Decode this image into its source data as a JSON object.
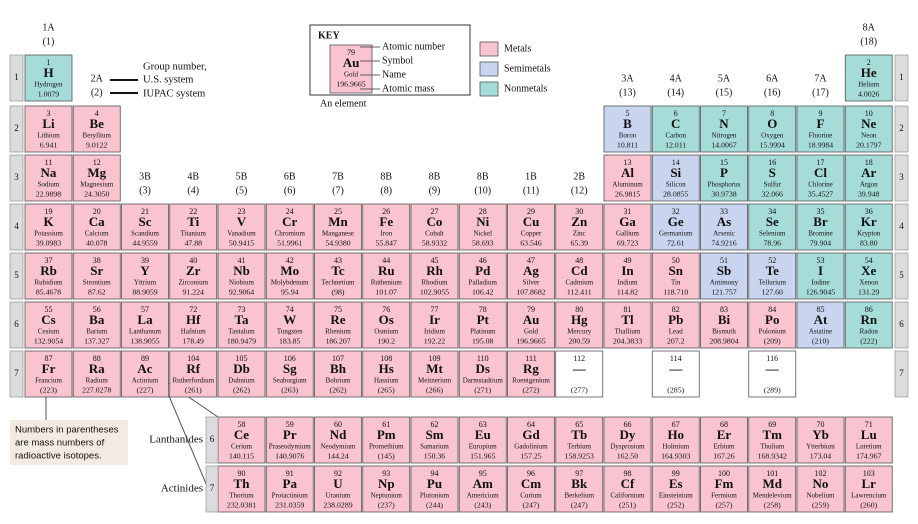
{
  "groups": [
    {
      "us": "1A",
      "iupac": "(1)"
    },
    {
      "us": "2A",
      "iupac": "(2)"
    },
    {
      "us": "3B",
      "iupac": "(3)"
    },
    {
      "us": "4B",
      "iupac": "(4)"
    },
    {
      "us": "5B",
      "iupac": "(5)"
    },
    {
      "us": "6B",
      "iupac": "(6)"
    },
    {
      "us": "7B",
      "iupac": "(7)"
    },
    {
      "us": "8B",
      "iupac": "(8)"
    },
    {
      "us": "8B",
      "iupac": "(9)"
    },
    {
      "us": "8B",
      "iupac": "(10)"
    },
    {
      "us": "1B",
      "iupac": "(11)"
    },
    {
      "us": "2B",
      "iupac": "(12)"
    },
    {
      "us": "3A",
      "iupac": "(13)"
    },
    {
      "us": "4A",
      "iupac": "(14)"
    },
    {
      "us": "5A",
      "iupac": "(15)"
    },
    {
      "us": "6A",
      "iupac": "(16)"
    },
    {
      "us": "7A",
      "iupac": "(17)"
    },
    {
      "us": "8A",
      "iupac": "(18)"
    }
  ],
  "periods": [
    "1",
    "2",
    "3",
    "4",
    "5",
    "6",
    "7"
  ],
  "group_note": [
    "Group number,",
    "U.S. system",
    "IUPAC system"
  ],
  "key": {
    "title": "KEY",
    "example": {
      "number": "79",
      "symbol": "Au",
      "name": "Gold",
      "mass": "196.9665",
      "color": "#f9c3cf"
    },
    "labels": [
      "Atomic number",
      "Symbol",
      "Name",
      "Atomic mass"
    ],
    "caption": "An element",
    "legend": [
      {
        "label": "Metals",
        "color": "#f9c3cf"
      },
      {
        "label": "Semimetals",
        "color": "#c9d4ee"
      },
      {
        "label": "Nonmetals",
        "color": "#a6dcd8"
      }
    ]
  },
  "note": [
    "Numbers in parentheses",
    "are mass numbers of",
    "radioactive isotopes."
  ],
  "series": [
    {
      "label": "Lanthanides",
      "period": "6"
    },
    {
      "label": "Actinides",
      "period": "7"
    }
  ],
  "elements": [
    {
      "number": "1",
      "symbol": "H",
      "name": "Hydrogen",
      "mass": "1.0079",
      "color": "#a6dcd8"
    },
    {
      "number": "2",
      "symbol": "He",
      "name": "Helium",
      "mass": "4.0026",
      "color": "#a6dcd8"
    },
    {
      "number": "3",
      "symbol": "Li",
      "name": "Lithium",
      "mass": "6.941",
      "color": "#f9c3cf"
    },
    {
      "number": "4",
      "symbol": "Be",
      "name": "Beryllium",
      "mass": "9.0122",
      "color": "#f9c3cf"
    },
    {
      "number": "5",
      "symbol": "B",
      "name": "Boron",
      "mass": "10.811",
      "color": "#c9d4ee"
    },
    {
      "number": "6",
      "symbol": "C",
      "name": "Carbon",
      "mass": "12.011",
      "color": "#a6dcd8"
    },
    {
      "number": "7",
      "symbol": "N",
      "name": "Nitrogen",
      "mass": "14.0067",
      "color": "#a6dcd8"
    },
    {
      "number": "8",
      "symbol": "O",
      "name": "Oxygen",
      "mass": "15.9994",
      "color": "#a6dcd8"
    },
    {
      "number": "9",
      "symbol": "F",
      "name": "Fluorine",
      "mass": "18.9984",
      "color": "#a6dcd8"
    },
    {
      "number": "10",
      "symbol": "Ne",
      "name": "Neon",
      "mass": "20.1797",
      "color": "#a6dcd8"
    },
    {
      "number": "11",
      "symbol": "Na",
      "name": "Sodium",
      "mass": "22.9898",
      "color": "#f9c3cf"
    },
    {
      "number": "12",
      "symbol": "Mg",
      "name": "Magnesium",
      "mass": "24.3050",
      "color": "#f9c3cf"
    },
    {
      "number": "13",
      "symbol": "Al",
      "name": "Aluminum",
      "mass": "26.9815",
      "color": "#f9c3cf"
    },
    {
      "number": "14",
      "symbol": "Si",
      "name": "Silicon",
      "mass": "28.0855",
      "color": "#c9d4ee"
    },
    {
      "number": "15",
      "symbol": "P",
      "name": "Phosphorus",
      "mass": "30.9738",
      "color": "#a6dcd8"
    },
    {
      "number": "16",
      "symbol": "S",
      "name": "Sulfur",
      "mass": "32.066",
      "color": "#a6dcd8"
    },
    {
      "number": "17",
      "symbol": "Cl",
      "name": "Chlorine",
      "mass": "35.4527",
      "color": "#a6dcd8"
    },
    {
      "number": "18",
      "symbol": "Ar",
      "name": "Argon",
      "mass": "39.948",
      "color": "#a6dcd8"
    },
    {
      "number": "19",
      "symbol": "K",
      "name": "Potassium",
      "mass": "39.0983",
      "color": "#f9c3cf"
    },
    {
      "number": "20",
      "symbol": "Ca",
      "name": "Calcium",
      "mass": "40.078",
      "color": "#f9c3cf"
    },
    {
      "number": "21",
      "symbol": "Sc",
      "name": "Scandium",
      "mass": "44.9559",
      "color": "#f9c3cf"
    },
    {
      "number": "22",
      "symbol": "Ti",
      "name": "Titanium",
      "mass": "47.88",
      "color": "#f9c3cf"
    },
    {
      "number": "23",
      "symbol": "V",
      "name": "Vanadium",
      "mass": "50.9415",
      "color": "#f9c3cf"
    },
    {
      "number": "24",
      "symbol": "Cr",
      "name": "Chromium",
      "mass": "51.9961",
      "color": "#f9c3cf"
    },
    {
      "number": "25",
      "symbol": "Mn",
      "name": "Manganese",
      "mass": "54.9380",
      "color": "#f9c3cf"
    },
    {
      "number": "26",
      "symbol": "Fe",
      "name": "Iron",
      "mass": "55.847",
      "color": "#f9c3cf"
    },
    {
      "number": "27",
      "symbol": "Co",
      "name": "Cobalt",
      "mass": "58.9332",
      "color": "#f9c3cf"
    },
    {
      "number": "28",
      "symbol": "Ni",
      "name": "Nickel",
      "mass": "58.693",
      "color": "#f9c3cf"
    },
    {
      "number": "29",
      "symbol": "Cu",
      "name": "Copper",
      "mass": "63.546",
      "color": "#f9c3cf"
    },
    {
      "number": "30",
      "symbol": "Zn",
      "name": "Zinc",
      "mass": "65.39",
      "color": "#f9c3cf"
    },
    {
      "number": "31",
      "symbol": "Ga",
      "name": "Gallium",
      "mass": "69.723",
      "color": "#f9c3cf"
    },
    {
      "number": "32",
      "symbol": "Ge",
      "name": "Germanium",
      "mass": "72.61",
      "color": "#c9d4ee"
    },
    {
      "number": "33",
      "symbol": "As",
      "name": "Arsenic",
      "mass": "74.9216",
      "color": "#c9d4ee"
    },
    {
      "number": "34",
      "symbol": "Se",
      "name": "Selenium",
      "mass": "78.96",
      "color": "#a6dcd8"
    },
    {
      "number": "35",
      "symbol": "Br",
      "name": "Bromine",
      "mass": "79.904",
      "color": "#a6dcd8"
    },
    {
      "number": "36",
      "symbol": "Kr",
      "name": "Krypton",
      "mass": "83.80",
      "color": "#a6dcd8"
    },
    {
      "number": "37",
      "symbol": "Rb",
      "name": "Rubidium",
      "mass": "85.4678",
      "color": "#f9c3cf"
    },
    {
      "number": "38",
      "symbol": "Sr",
      "name": "Strontium",
      "mass": "87.62",
      "color": "#f9c3cf"
    },
    {
      "number": "39",
      "symbol": "Y",
      "name": "Yttrium",
      "mass": "88.9059",
      "color": "#f9c3cf"
    },
    {
      "number": "40",
      "symbol": "Zr",
      "name": "Zirconium",
      "mass": "91.224",
      "color": "#f9c3cf"
    },
    {
      "number": "41",
      "symbol": "Nb",
      "name": "Niobium",
      "mass": "92.9064",
      "color": "#f9c3cf"
    },
    {
      "number": "42",
      "symbol": "Mo",
      "name": "Molybdenum",
      "mass": "95.94",
      "color": "#f9c3cf"
    },
    {
      "number": "43",
      "symbol": "Tc",
      "name": "Technetium",
      "mass": "(98)",
      "color": "#f9c3cf"
    },
    {
      "number": "44",
      "symbol": "Ru",
      "name": "Ruthenium",
      "mass": "101.07",
      "color": "#f9c3cf"
    },
    {
      "number": "45",
      "symbol": "Rh",
      "name": "Rhodium",
      "mass": "102.9055",
      "color": "#f9c3cf"
    },
    {
      "number": "46",
      "symbol": "Pd",
      "name": "Palladium",
      "mass": "106.42",
      "color": "#f9c3cf"
    },
    {
      "number": "47",
      "symbol": "Ag",
      "name": "Silver",
      "mass": "107.8682",
      "color": "#f9c3cf"
    },
    {
      "number": "48",
      "symbol": "Cd",
      "name": "Cadmium",
      "mass": "112.411",
      "color": "#f9c3cf"
    },
    {
      "number": "49",
      "symbol": "In",
      "name": "Indium",
      "mass": "114.82",
      "color": "#f9c3cf"
    },
    {
      "number": "50",
      "symbol": "Sn",
      "name": "Tin",
      "mass": "118.710",
      "color": "#f9c3cf"
    },
    {
      "number": "51",
      "symbol": "Sb",
      "name": "Antimony",
      "mass": "121.757",
      "color": "#c9d4ee"
    },
    {
      "number": "52",
      "symbol": "Te",
      "name": "Tellurium",
      "mass": "127.60",
      "color": "#c9d4ee"
    },
    {
      "number": "53",
      "symbol": "I",
      "name": "Iodine",
      "mass": "126.9045",
      "color": "#a6dcd8"
    },
    {
      "number": "54",
      "symbol": "Xe",
      "name": "Xenon",
      "mass": "131.29",
      "color": "#a6dcd8"
    },
    {
      "number": "55",
      "symbol": "Cs",
      "name": "Cesium",
      "mass": "132.9054",
      "color": "#f9c3cf"
    },
    {
      "number": "56",
      "symbol": "Ba",
      "name": "Barium",
      "mass": "137.327",
      "color": "#f9c3cf"
    },
    {
      "number": "57",
      "symbol": "La",
      "name": "Lanthanum",
      "mass": "138.9055",
      "color": "#f9c3cf"
    },
    {
      "number": "72",
      "symbol": "Hf",
      "name": "Hafnium",
      "mass": "178.49",
      "color": "#f9c3cf"
    },
    {
      "number": "73",
      "symbol": "Ta",
      "name": "Tantalum",
      "mass": "180.9479",
      "color": "#f9c3cf"
    },
    {
      "number": "74",
      "symbol": "W",
      "name": "Tungsten",
      "mass": "183.85",
      "color": "#f9c3cf"
    },
    {
      "number": "75",
      "symbol": "Re",
      "name": "Rhenium",
      "mass": "186.207",
      "color": "#f9c3cf"
    },
    {
      "number": "76",
      "symbol": "Os",
      "name": "Osmium",
      "mass": "190.2",
      "color": "#f9c3cf"
    },
    {
      "number": "77",
      "symbol": "Ir",
      "name": "Iridium",
      "mass": "192.22",
      "color": "#f9c3cf"
    },
    {
      "number": "78",
      "symbol": "Pt",
      "name": "Platinum",
      "mass": "195.08",
      "color": "#f9c3cf"
    },
    {
      "number": "79",
      "symbol": "Au",
      "name": "Gold",
      "mass": "196.9665",
      "color": "#f9c3cf"
    },
    {
      "number": "80",
      "symbol": "Hg",
      "name": "Mercury",
      "mass": "200.59",
      "color": "#f9c3cf"
    },
    {
      "number": "81",
      "symbol": "Tl",
      "name": "Thallium",
      "mass": "204.3833",
      "color": "#f9c3cf"
    },
    {
      "number": "82",
      "symbol": "Pb",
      "name": "Lead",
      "mass": "207.2",
      "color": "#f9c3cf"
    },
    {
      "number": "83",
      "symbol": "Bi",
      "name": "Bismuth",
      "mass": "208.9804",
      "color": "#f9c3cf"
    },
    {
      "number": "84",
      "symbol": "Po",
      "name": "Polonium",
      "mass": "(209)",
      "color": "#f9c3cf"
    },
    {
      "number": "85",
      "symbol": "At",
      "name": "Astatine",
      "mass": "(210)",
      "color": "#c9d4ee"
    },
    {
      "number": "86",
      "symbol": "Rn",
      "name": "Radon",
      "mass": "(222)",
      "color": "#a6dcd8"
    },
    {
      "number": "87",
      "symbol": "Fr",
      "name": "Francium",
      "mass": "(223)",
      "color": "#f9c3cf"
    },
    {
      "number": "88",
      "symbol": "Ra",
      "name": "Radium",
      "mass": "227.0278",
      "color": "#f9c3cf"
    },
    {
      "number": "89",
      "symbol": "Ac",
      "name": "Actinium",
      "mass": "(227)",
      "color": "#f9c3cf"
    },
    {
      "number": "104",
      "symbol": "Rf",
      "name": "Rutherfordium",
      "mass": "(261)",
      "color": "#f9c3cf"
    },
    {
      "number": "105",
      "symbol": "Db",
      "name": "Dubnium",
      "mass": "(262)",
      "color": "#f9c3cf"
    },
    {
      "number": "106",
      "symbol": "Sg",
      "name": "Seaborgium",
      "mass": "(263)",
      "color": "#f9c3cf"
    },
    {
      "number": "107",
      "symbol": "Bh",
      "name": "Bohrium",
      "mass": "(262)",
      "color": "#f9c3cf"
    },
    {
      "number": "108",
      "symbol": "Hs",
      "name": "Hassium",
      "mass": "(265)",
      "color": "#f9c3cf"
    },
    {
      "number": "109",
      "symbol": "Mt",
      "name": "Meitnerium",
      "mass": "(266)",
      "color": "#f9c3cf"
    },
    {
      "number": "110",
      "symbol": "Ds",
      "name": "Darmstadtium",
      "mass": "(271)",
      "color": "#f9c3cf"
    },
    {
      "number": "111",
      "symbol": "Rg",
      "name": "Roentgenium",
      "mass": "(272)",
      "color": "#f9c3cf"
    },
    {
      "number": "112",
      "symbol": "—",
      "mass": "(277)",
      "color": "#ffffff"
    },
    {
      "number": "114",
      "symbol": "—",
      "mass": "(285)",
      "color": "#ffffff"
    },
    {
      "number": "116",
      "symbol": "—",
      "mass": "(289)",
      "color": "#ffffff"
    },
    {
      "number": "58",
      "symbol": "Ce",
      "name": "Cerium",
      "mass": "140.115",
      "color": "#f9c3cf"
    },
    {
      "number": "59",
      "symbol": "Pr",
      "name": "Praseodymium",
      "mass": "140.9076",
      "color": "#f9c3cf"
    },
    {
      "number": "60",
      "symbol": "Nd",
      "name": "Neodymium",
      "mass": "144.24",
      "color": "#f9c3cf"
    },
    {
      "number": "61",
      "symbol": "Pm",
      "name": "Promethium",
      "mass": "(145)",
      "color": "#f9c3cf"
    },
    {
      "number": "62",
      "symbol": "Sm",
      "name": "Samarium",
      "mass": "150.36",
      "color": "#f9c3cf"
    },
    {
      "number": "63",
      "symbol": "Eu",
      "name": "Europium",
      "mass": "151.965",
      "color": "#f9c3cf"
    },
    {
      "number": "64",
      "symbol": "Gd",
      "name": "Gadolinium",
      "mass": "157.25",
      "color": "#f9c3cf"
    },
    {
      "number": "65",
      "symbol": "Tb",
      "name": "Terbium",
      "mass": "158.9253",
      "color": "#f9c3cf"
    },
    {
      "number": "66",
      "symbol": "Dy",
      "name": "Dysprosium",
      "mass": "162.50",
      "color": "#f9c3cf"
    },
    {
      "number": "67",
      "symbol": "Ho",
      "name": "Holmium",
      "mass": "164.9303",
      "color": "#f9c3cf"
    },
    {
      "number": "68",
      "symbol": "Er",
      "name": "Erbium",
      "mass": "167.26",
      "color": "#f9c3cf"
    },
    {
      "number": "69",
      "symbol": "Tm",
      "name": "Thulium",
      "mass": "168.9342",
      "color": "#f9c3cf"
    },
    {
      "number": "70",
      "symbol": "Yb",
      "name": "Ytterbium",
      "mass": "173.04",
      "color": "#f9c3cf"
    },
    {
      "number": "71",
      "symbol": "Lu",
      "name": "Lutetium",
      "mass": "174.967",
      "color": "#f9c3cf"
    },
    {
      "number": "90",
      "symbol": "Th",
      "name": "Thorium",
      "mass": "232.0381",
      "color": "#f9c3cf"
    },
    {
      "number": "91",
      "symbol": "Pa",
      "name": "Protactinium",
      "mass": "231.0359",
      "color": "#f9c3cf"
    },
    {
      "number": "92",
      "symbol": "U",
      "name": "Uranium",
      "mass": "238.0289",
      "color": "#f9c3cf"
    },
    {
      "number": "93",
      "symbol": "Np",
      "name": "Neptunium",
      "mass": "(237)",
      "color": "#f9c3cf"
    },
    {
      "number": "94",
      "symbol": "Pu",
      "name": "Plutonium",
      "mass": "(244)",
      "color": "#f9c3cf"
    },
    {
      "number": "95",
      "symbol": "Am",
      "name": "Americium",
      "mass": "(243)",
      "color": "#f9c3cf"
    },
    {
      "number": "96",
      "symbol": "Cm",
      "name": "Curium",
      "mass": "(247)",
      "color": "#f9c3cf"
    },
    {
      "number": "97",
      "symbol": "Bk",
      "name": "Berkelium",
      "mass": "(247)",
      "color": "#f9c3cf"
    },
    {
      "number": "98",
      "symbol": "Cf",
      "name": "Californium",
      "mass": "(251)",
      "color": "#f9c3cf"
    },
    {
      "number": "99",
      "symbol": "Es",
      "name": "Einsteinium",
      "mass": "(252)",
      "color": "#f9c3cf"
    },
    {
      "number": "100",
      "symbol": "Fm",
      "name": "Fermium",
      "mass": "(257)",
      "color": "#f9c3cf"
    },
    {
      "number": "101",
      "symbol": "Md",
      "name": "Mendelevium",
      "mass": "(258)",
      "color": "#f9c3cf"
    },
    {
      "number": "102",
      "symbol": "No",
      "name": "Nobelium",
      "mass": "(259)",
      "color": "#f9c3cf"
    },
    {
      "number": "103",
      "symbol": "Lr",
      "name": "Lawrencium",
      "mass": "(260)",
      "color": "#f9c3cf"
    }
  ]
}
